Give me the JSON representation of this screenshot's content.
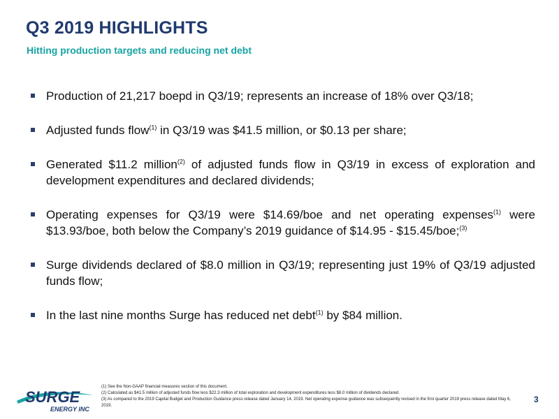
{
  "header": {
    "title": "Q3 2019 HIGHLIGHTS",
    "subtitle": "Hitting production targets and reducing net debt"
  },
  "bullets": [
    {
      "parts": [
        {
          "t": "Production of 21,217 boepd in Q3/19; represents an increase of 18% over Q3/18;"
        }
      ]
    },
    {
      "parts": [
        {
          "t": "Adjusted funds flow"
        },
        {
          "t": "(1)",
          "sup": true
        },
        {
          "t": " in Q3/19 was $41.5 million, or $0.13 per share;"
        }
      ]
    },
    {
      "parts": [
        {
          "t": "Generated $11.2 million"
        },
        {
          "t": "(2)",
          "sup": true
        },
        {
          "t": " of adjusted funds flow in Q3/19 in excess of exploration and development expenditures and declared dividends;"
        }
      ]
    },
    {
      "parts": [
        {
          "t": "Operating expenses for Q3/19 were $14.69/boe and net operating expenses"
        },
        {
          "t": "(1)",
          "sup": true
        },
        {
          "t": " were $13.93/boe, both below the Company’s 2019 guidance of $14.95 - $15.45/boe;"
        },
        {
          "t": "(3)",
          "sup": true
        }
      ]
    },
    {
      "parts": [
        {
          "t": "Surge dividends declared of $8.0 million in Q3/19; representing just 19% of Q3/19 adjusted funds flow;"
        }
      ]
    },
    {
      "parts": [
        {
          "t": "In the last nine months Surge has reduced net debt"
        },
        {
          "t": "(1)",
          "sup": true
        },
        {
          "t": " by $84 million."
        }
      ]
    }
  ],
  "footnotes": [
    "(1) See the Non-GAAP financial measures section of this document.",
    "(2) Calculated as $41.5 million of adjusted funds flow less $22.3 million of total exploration and development expenditures less $8.0 million of dividends declared.",
    "(3) As compared to the 2019 Capital Budget and Production Guidance press release dated January 14, 2019. Net operating expense guidance was subsequently revised in the first quarter 2019 press release dated May 6, 2019."
  ],
  "logo": {
    "text": "SURGE",
    "subtext": "ENERGY INC"
  },
  "page_number": "3",
  "colors": {
    "title": "#1f3a6e",
    "subtitle": "#17a3a3",
    "logo_text": "#1f3a6e",
    "logo_swoosh": "#17a3a3"
  }
}
